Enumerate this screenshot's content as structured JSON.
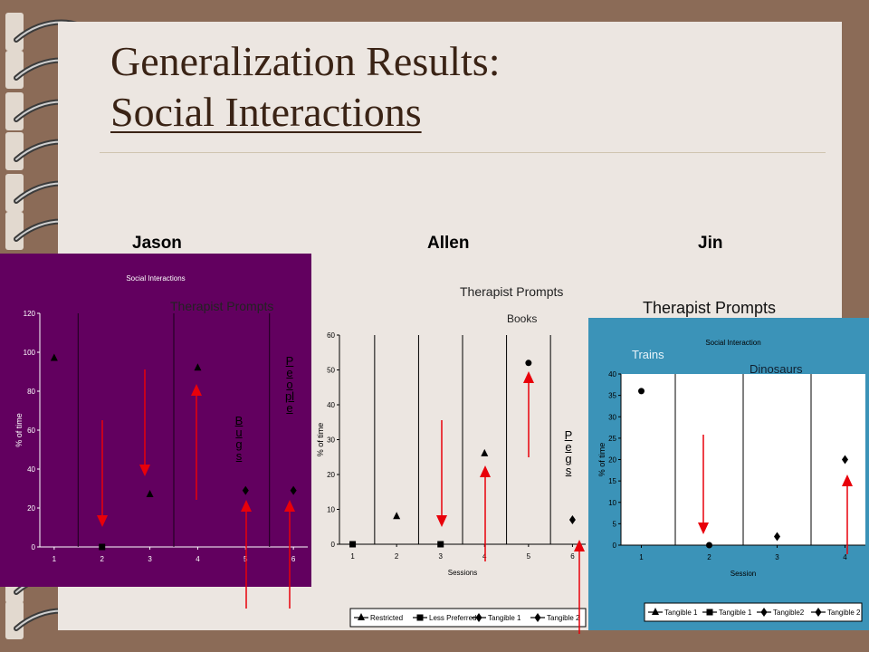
{
  "slide": {
    "title_line1": "Generalization Results:",
    "title_line2": "Social Interactions",
    "participants": [
      "Jason",
      "Allen",
      "Jin"
    ]
  },
  "annotations": {
    "jason": {
      "prompt": "Therapist Prompts",
      "bugs": "Bugs",
      "people_1": "People",
      "people_2": "People"
    },
    "allen": {
      "prompt": "Therapist Prompts",
      "books": "Books",
      "pegs": "Pegs"
    },
    "jin": {
      "prompt": "Therapist Prompts",
      "trains": "Trains",
      "dinosaurs": "Dinosaurs"
    }
  },
  "colors": {
    "jason_bg": "#62005F",
    "jin_bg": "#3B93B8",
    "arrow": "#E8000A",
    "paper": "#ECE6E1",
    "wood": "#8B6B57"
  },
  "chart_data": [
    {
      "type": "scatter",
      "participant": "Jason",
      "title": "Social Interactions",
      "ylabel": "% of time",
      "ylim": [
        0,
        120
      ],
      "yticks": [
        0,
        20,
        40,
        60,
        80,
        100,
        120
      ],
      "x": [
        1,
        2,
        3,
        4,
        5,
        6
      ],
      "xtick_labels": [
        "1",
        "2",
        "3",
        "4",
        "5",
        "6"
      ],
      "phase_lines": [
        1.5,
        3.5,
        5.5
      ],
      "points": [
        {
          "x": 1,
          "y": 97,
          "marker": "triangle"
        },
        {
          "x": 2,
          "y": 0,
          "marker": "square"
        },
        {
          "x": 3,
          "y": 27,
          "marker": "triangle"
        },
        {
          "x": 4,
          "y": 92,
          "marker": "triangle"
        },
        {
          "x": 5,
          "y": 29,
          "marker": "diamond"
        },
        {
          "x": 6,
          "y": 29,
          "marker": "diamond"
        }
      ]
    },
    {
      "type": "scatter",
      "participant": "Allen",
      "xlabel": "Sessions",
      "ylabel": "% of time",
      "ylim": [
        0,
        60
      ],
      "yticks": [
        0,
        10,
        20,
        30,
        40,
        50,
        60
      ],
      "x": [
        1,
        2,
        3,
        4,
        5,
        6
      ],
      "xtick_labels": [
        "1",
        "2",
        "3",
        "4",
        "5",
        "6"
      ],
      "phase_lines": [
        1.5,
        2.5,
        3.5,
        4.5,
        5.5
      ],
      "points": [
        {
          "x": 1,
          "y": 0,
          "marker": "square"
        },
        {
          "x": 2,
          "y": 8,
          "marker": "triangle"
        },
        {
          "x": 3,
          "y": 0,
          "marker": "square"
        },
        {
          "x": 4,
          "y": 26,
          "marker": "triangle"
        },
        {
          "x": 5,
          "y": 52,
          "marker": "circle"
        },
        {
          "x": 6,
          "y": 7,
          "marker": "diamond"
        }
      ],
      "legend": [
        "Restricted",
        "Less Preferred",
        "Tangible 1",
        "Tangible 2"
      ],
      "legend_position": "bottom"
    },
    {
      "type": "scatter",
      "participant": "Jin",
      "title": "Social Interaction",
      "xlabel": "Session",
      "ylabel": "% of time",
      "ylim": [
        0,
        40
      ],
      "yticks": [
        0,
        5,
        10,
        15,
        20,
        25,
        30,
        35,
        40
      ],
      "x": [
        1,
        2,
        3,
        4
      ],
      "xtick_labels": [
        "1",
        "2",
        "3",
        "4"
      ],
      "phase_lines": [
        1.5,
        2.5,
        3.5
      ],
      "points": [
        {
          "x": 1,
          "y": 36,
          "marker": "circle"
        },
        {
          "x": 2,
          "y": 0,
          "marker": "circle"
        },
        {
          "x": 3,
          "y": 2,
          "marker": "diamond"
        },
        {
          "x": 4,
          "y": 20,
          "marker": "diamond"
        }
      ],
      "legend": [
        "Tangible 1",
        "Tangible 1",
        "Tangible2",
        "Tangible 2"
      ],
      "legend_position": "bottom"
    }
  ]
}
